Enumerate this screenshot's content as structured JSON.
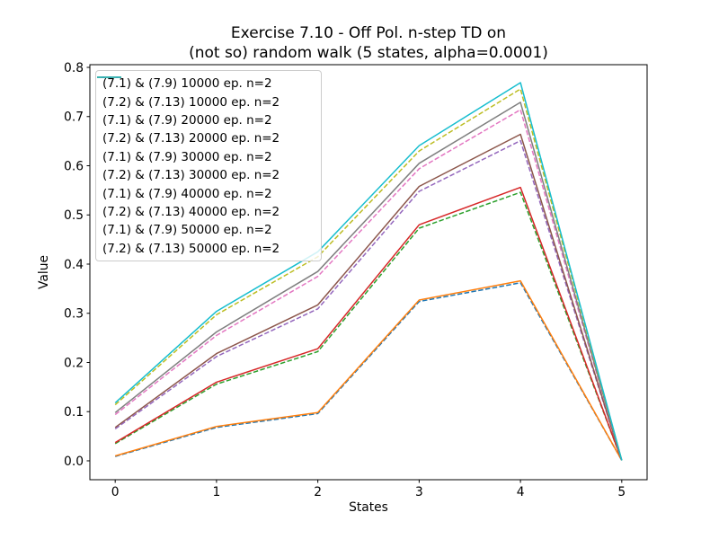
{
  "chart_data": {
    "type": "line",
    "title": "Exercise 7.10 - Off Pol. n-step TD on\n(not so) random walk (5 states, alpha=0.0001)",
    "xlabel": "States",
    "ylabel": "Value",
    "x": [
      0,
      1,
      2,
      3,
      4,
      5
    ],
    "xlim": [
      -0.25,
      5.25
    ],
    "ylim": [
      -0.0384,
      0.8055
    ],
    "xtick_values": [
      0,
      1,
      2,
      3,
      4,
      5
    ],
    "xtick_labels": [
      "0",
      "1",
      "2",
      "3",
      "4",
      "5"
    ],
    "ytick_values": [
      0.0,
      0.1,
      0.2,
      0.3,
      0.4,
      0.5,
      0.6,
      0.7,
      0.8
    ],
    "ytick_labels": [
      "0.0",
      "0.1",
      "0.2",
      "0.3",
      "0.4",
      "0.5",
      "0.6",
      "0.7",
      "0.8"
    ],
    "grid": false,
    "legend_position": "upper left",
    "line_width": 1.5,
    "series": [
      {
        "name": "(7.1) & (7.9) 10000 ep. n=2",
        "color": "#1f77b4",
        "style": "dashed",
        "values": [
          0.009,
          0.068,
          0.096,
          0.324,
          0.362,
          0.001
        ]
      },
      {
        "name": "(7.2) & (7.13) 10000 ep. n=2",
        "color": "#ff7f0e",
        "style": "solid",
        "values": [
          0.01,
          0.07,
          0.098,
          0.327,
          0.366,
          0.001
        ]
      },
      {
        "name": "(7.1) & (7.9) 20000 ep. n=2",
        "color": "#2ca02c",
        "style": "dashed",
        "values": [
          0.035,
          0.156,
          0.222,
          0.473,
          0.546,
          0.001
        ]
      },
      {
        "name": "(7.2) & (7.13) 20000 ep. n=2",
        "color": "#d62728",
        "style": "solid",
        "values": [
          0.037,
          0.16,
          0.228,
          0.48,
          0.556,
          0.001
        ]
      },
      {
        "name": "(7.1) & (7.9) 30000 ep. n=2",
        "color": "#9467bd",
        "style": "dashed",
        "values": [
          0.065,
          0.212,
          0.309,
          0.548,
          0.651,
          0.001
        ]
      },
      {
        "name": "(7.2) & (7.13) 30000 ep. n=2",
        "color": "#8c564b",
        "style": "solid",
        "values": [
          0.068,
          0.218,
          0.317,
          0.558,
          0.664,
          0.001
        ]
      },
      {
        "name": "(7.1) & (7.9) 40000 ep. n=2",
        "color": "#e377c2",
        "style": "dashed",
        "values": [
          0.094,
          0.255,
          0.375,
          0.594,
          0.714,
          0.001
        ]
      },
      {
        "name": "(7.2) & (7.13) 40000 ep. n=2",
        "color": "#7f7f7f",
        "style": "solid",
        "values": [
          0.098,
          0.262,
          0.385,
          0.605,
          0.729,
          0.001
        ]
      },
      {
        "name": "(7.1) & (7.9) 50000 ep. n=2",
        "color": "#bcbd22",
        "style": "dashed",
        "values": [
          0.114,
          0.297,
          0.415,
          0.63,
          0.756,
          0.001
        ]
      },
      {
        "name": "(7.2) & (7.13) 50000 ep. n=2",
        "color": "#17becf",
        "style": "solid",
        "values": [
          0.118,
          0.304,
          0.425,
          0.641,
          0.769,
          0.001
        ]
      }
    ]
  }
}
